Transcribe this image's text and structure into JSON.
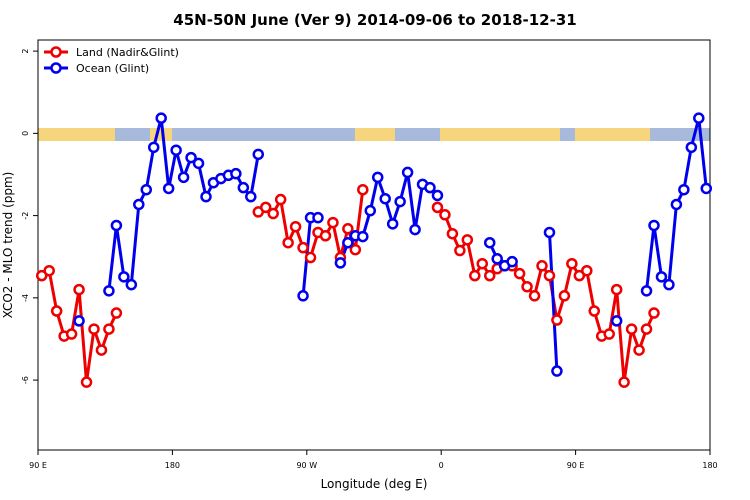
{
  "chart_data": {
    "type": "line",
    "title": "45N-50N June (Ver 9)   2014-09-06 to 2018-12-31",
    "x_label": "Longitude (deg E)",
    "y_label": "XCO2 - MLO trend (ppm)",
    "x": [
      92.5,
      97.5,
      102.5,
      107.5,
      112.5,
      117.5,
      122.5,
      127.5,
      132.5,
      137.5,
      142.5,
      147.5,
      152.5,
      157.5,
      162.5,
      167.5,
      172.5,
      177.5,
      182.5,
      187.5,
      192.5,
      197.5,
      202.5,
      207.5,
      212.5,
      217.5,
      222.5,
      227.5,
      232.5,
      237.5,
      242.5,
      247.5,
      252.5,
      257.5,
      262.5,
      267.5,
      272.5,
      277.5,
      282.5,
      287.5,
      292.5,
      297.5,
      302.5,
      307.5,
      312.5,
      317.5,
      322.5,
      327.5,
      332.5,
      337.5,
      342.5,
      347.5,
      352.5,
      357.5,
      362.5,
      367.5,
      372.5,
      377.5,
      382.5,
      387.5,
      392.5,
      397.5,
      402.5,
      407.5,
      412.5,
      417.5,
      422.5,
      427.5,
      432.5,
      437.5,
      442.5,
      447.5,
      452.5,
      457.5,
      462.5,
      467.5,
      472.5,
      477.5,
      482.5,
      487.5,
      492.5,
      497.5,
      502.5,
      507.5,
      512.5,
      517.5,
      522.5,
      527.5,
      532.5,
      537.5
    ],
    "series": [
      {
        "name": "Land (Nadir&Glint)",
        "color": "#ee0000",
        "values": [
          -3.46,
          -3.34,
          -4.32,
          -4.93,
          -4.88,
          -3.8,
          -6.05,
          -4.76,
          -5.27,
          -4.76,
          -4.37,
          null,
          null,
          null,
          null,
          null,
          null,
          null,
          null,
          null,
          null,
          null,
          null,
          null,
          null,
          null,
          null,
          null,
          null,
          -1.91,
          -1.8,
          -1.95,
          -1.61,
          -2.66,
          -2.27,
          -2.78,
          -3.02,
          -2.41,
          -2.49,
          -2.17,
          -3.02,
          -2.32,
          -2.83,
          -1.37,
          null,
          null,
          null,
          null,
          null,
          null,
          null,
          null,
          null,
          -1.8,
          -1.98,
          -2.44,
          -2.85,
          -2.59,
          -3.46,
          -3.17,
          -3.46,
          -3.29,
          -3.22,
          -3.22,
          -3.41,
          -3.73,
          -3.95,
          -3.22,
          -3.46,
          -4.54,
          -3.95,
          -3.17,
          -3.46,
          -3.34,
          -4.32,
          -4.93,
          -4.88,
          -3.8,
          -6.05,
          -4.76,
          -5.27,
          -4.76,
          -4.37,
          null,
          null,
          null,
          null,
          null,
          null,
          null
        ]
      },
      {
        "name": "Ocean (Glint)",
        "color": "#0000ee",
        "values": [
          null,
          null,
          null,
          null,
          null,
          -4.56,
          null,
          null,
          null,
          -3.83,
          -2.24,
          -3.49,
          -3.68,
          -1.73,
          -1.37,
          -0.34,
          0.37,
          -1.34,
          -0.41,
          -1.07,
          -0.59,
          -0.73,
          -1.54,
          -1.2,
          -1.1,
          -1.02,
          -0.98,
          -1.32,
          -1.54,
          -0.51,
          null,
          null,
          null,
          null,
          null,
          -3.95,
          -2.05,
          -2.05,
          null,
          null,
          -3.15,
          -2.66,
          -2.49,
          -2.51,
          -1.88,
          -1.07,
          -1.59,
          -2.2,
          -1.66,
          -0.95,
          -2.34,
          -1.24,
          -1.32,
          -1.51,
          null,
          null,
          null,
          null,
          null,
          null,
          -2.66,
          -3.05,
          -3.22,
          -3.12,
          null,
          null,
          null,
          null,
          -2.41,
          -5.78,
          null,
          null,
          null,
          null,
          null,
          null,
          null,
          -4.56,
          null,
          null,
          null,
          -3.83,
          -2.24,
          -3.49,
          -3.68,
          -1.73,
          -1.37,
          -0.34,
          0.37,
          -1.34
        ]
      }
    ],
    "xlim": [
      90,
      540
    ],
    "xticks": [
      {
        "value": 90,
        "label": "90 E"
      },
      {
        "value": 180,
        "label": "180"
      },
      {
        "value": 270,
        "label": "90 W"
      },
      {
        "value": 360,
        "label": "0"
      },
      {
        "value": 450,
        "label": "90 E"
      },
      {
        "value": 540,
        "label": "180"
      }
    ],
    "ylim": [
      -7.7,
      2.27
    ],
    "yticks": [
      -6,
      -4,
      -2,
      0,
      2
    ],
    "legend": "top-left"
  }
}
